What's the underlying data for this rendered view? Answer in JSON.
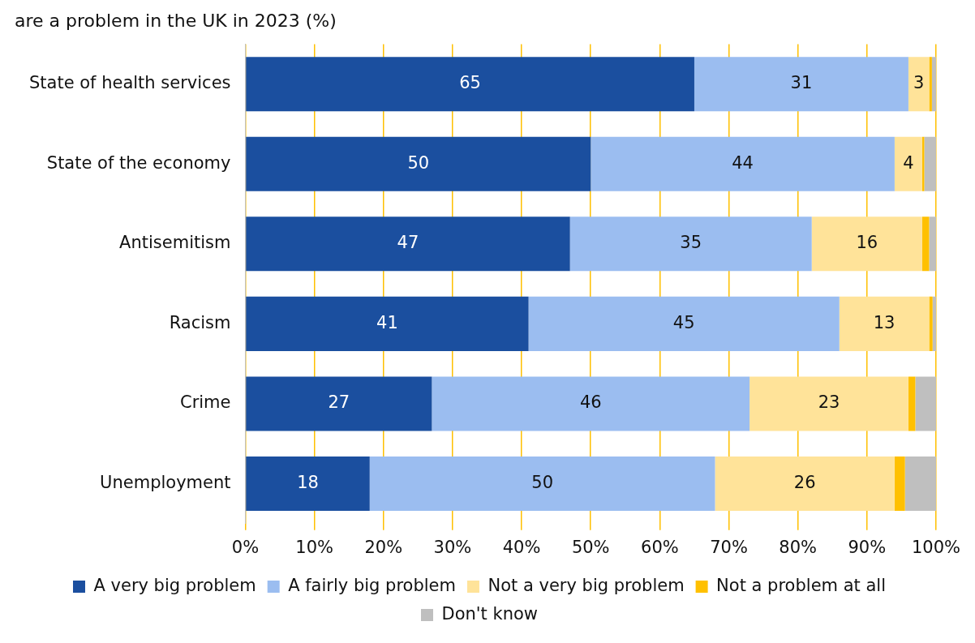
{
  "chart_data": {
    "type": "bar",
    "orientation": "horizontal",
    "stacked": true,
    "title": "are a problem in the UK in 2023 (%)",
    "categories": [
      "State of health services",
      "State of the economy",
      "Antisemitism",
      "Racism",
      "Crime",
      "Unemployment"
    ],
    "series": [
      {
        "name": "A very big problem",
        "color": "#1b4f9f",
        "values": [
          65,
          50,
          47,
          41,
          27,
          18
        ],
        "value_labels": [
          "65",
          "50",
          "47",
          "41",
          "27",
          "18"
        ]
      },
      {
        "name": "A fairly big problem",
        "color": "#9bbdf0",
        "values": [
          31,
          44,
          35,
          45,
          46,
          50
        ],
        "value_labels": [
          "31",
          "44",
          "35",
          "45",
          "46",
          "50"
        ]
      },
      {
        "name": "Not a very big problem",
        "color": "#ffe399",
        "values": [
          3,
          4,
          16,
          13,
          23,
          26
        ],
        "value_labels": [
          "3",
          "4",
          "16",
          "13",
          "23",
          "26"
        ]
      },
      {
        "name": "Not a problem at all",
        "color": "#ffc000",
        "values": [
          0.4,
          0.3,
          1,
          0.5,
          1,
          1.5
        ]
      },
      {
        "name": "Don't know",
        "color": "#bfbfbf",
        "values": [
          0.6,
          1.7,
          1,
          0.5,
          3,
          4.5
        ]
      }
    ],
    "xlim": [
      0,
      100
    ],
    "xticks": [
      {
        "value": 0,
        "label": "0%"
      },
      {
        "value": 10,
        "label": "10%"
      },
      {
        "value": 20,
        "label": "20%"
      },
      {
        "value": 30,
        "label": "30%"
      },
      {
        "value": 40,
        "label": "40%"
      },
      {
        "value": 50,
        "label": "50%"
      },
      {
        "value": 60,
        "label": "60%"
      },
      {
        "value": 70,
        "label": "70%"
      },
      {
        "value": 80,
        "label": "80%"
      },
      {
        "value": 90,
        "label": "90%"
      },
      {
        "value": 100,
        "label": "100%"
      }
    ],
    "grid": "x",
    "legend": "bottom"
  }
}
